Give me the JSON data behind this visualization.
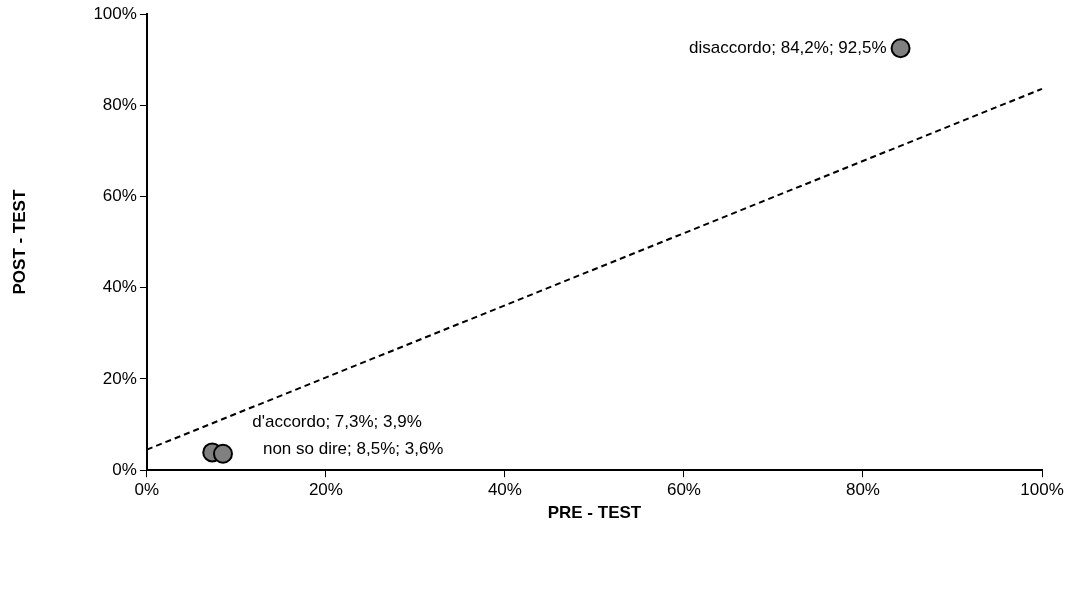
{
  "chart_data": {
    "type": "scatter",
    "xlabel": "PRE - TEST",
    "ylabel": "POST - TEST",
    "series": [
      {
        "type": "scatter",
        "color": "#808080",
        "x": [
          84.2,
          7.3,
          8.5
        ],
        "values": [
          92.5,
          3.9,
          3.6
        ],
        "marker": "circle"
      },
      {
        "type": "line",
        "color": "#000000",
        "x": [
          0,
          100
        ],
        "values": [
          4.5,
          83.6
        ],
        "line_style": "dashed",
        "marker": "none"
      }
    ],
    "xlim": [
      0,
      100
    ],
    "ylim": [
      0,
      100
    ],
    "xticks": [
      {
        "value": 0,
        "label": "0%"
      },
      {
        "value": 20,
        "label": "20%"
      },
      {
        "value": 40,
        "label": "40%"
      },
      {
        "value": 60,
        "label": "60%"
      },
      {
        "value": 80,
        "label": "80%"
      },
      {
        "value": 100,
        "label": "100%"
      }
    ],
    "yticks": [
      {
        "value": 0,
        "label": "0%"
      },
      {
        "value": 20,
        "label": "20%"
      },
      {
        "value": 40,
        "label": "40%"
      },
      {
        "value": 60,
        "label": "60%"
      },
      {
        "value": 80,
        "label": "80%"
      },
      {
        "value": 100,
        "label": "100%"
      }
    ],
    "annotations": [
      {
        "text": "disaccordo; 84,2%; 92,5%",
        "x": 84.2,
        "y": 92.5
      },
      {
        "text": "d'accordo; 7,3%; 3,9%",
        "x": 7.3,
        "y": 3.9
      },
      {
        "text": "non so dire; 8,5%; 3,6%",
        "x": 8.5,
        "y": 3.6
      }
    ],
    "grid": false,
    "legend": false
  }
}
